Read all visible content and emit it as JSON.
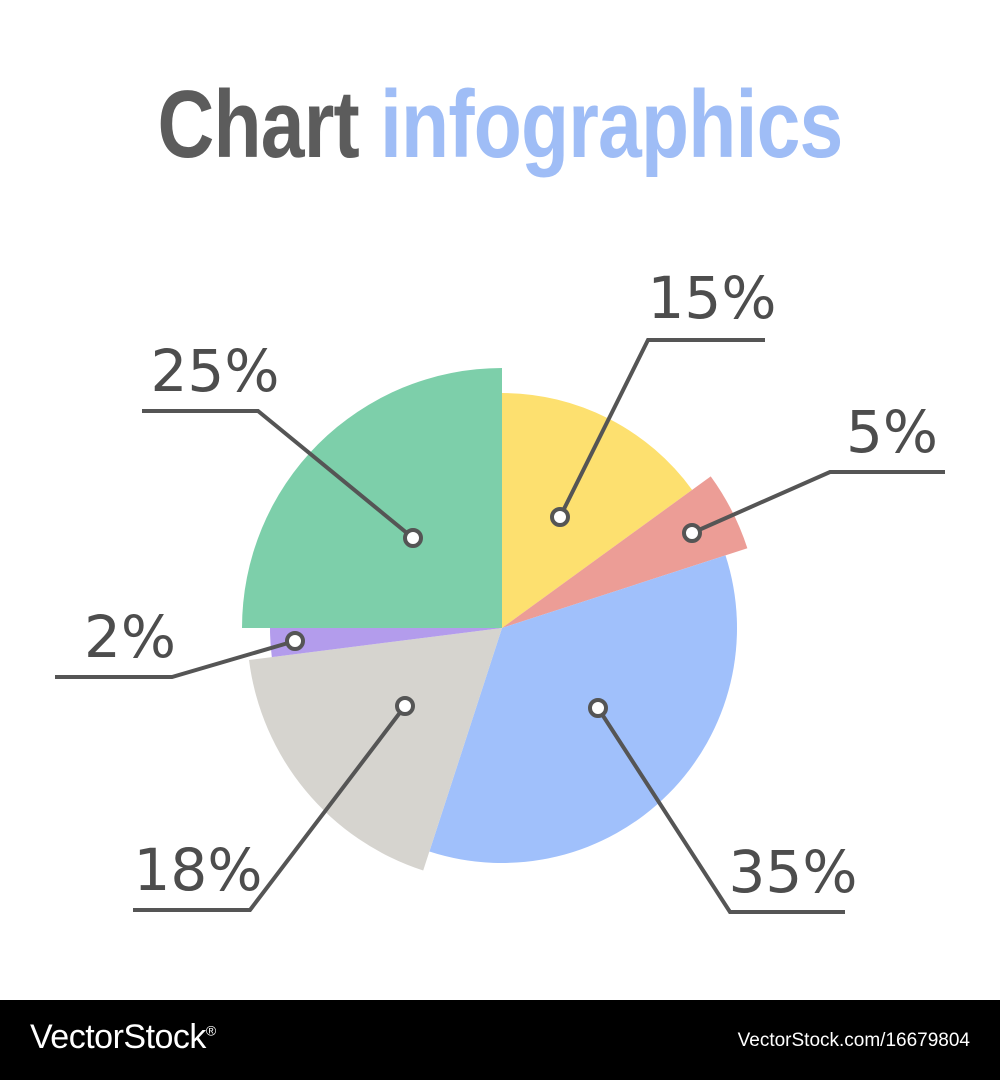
{
  "title": {
    "part1": "Chart",
    "part2": "infographics"
  },
  "colors": {
    "title_dark": "#5c5c5c",
    "title_accent": "#9fbdf6",
    "leader_line": "#555555",
    "label_text": "#4d4d4d"
  },
  "chart_data": {
    "type": "pie",
    "title": "Chart infographics",
    "start_angle_deg": 0,
    "direction": "clockwise",
    "slices": [
      {
        "label": "15%",
        "value": 15,
        "color": "#fde06f"
      },
      {
        "label": "5%",
        "value": 5,
        "color": "#ec9d96"
      },
      {
        "label": "35%",
        "value": 35,
        "color": "#a0c0fb"
      },
      {
        "label": "18%",
        "value": 18,
        "color": "#d6d4cf"
      },
      {
        "label": "2%",
        "value": 2,
        "color": "#b39cec"
      },
      {
        "label": "25%",
        "value": 25,
        "color": "#7dcfaa"
      }
    ]
  },
  "footer": {
    "brand": "VectorStock",
    "registered_mark": "®",
    "reference": "VectorStock.com/16679804"
  }
}
